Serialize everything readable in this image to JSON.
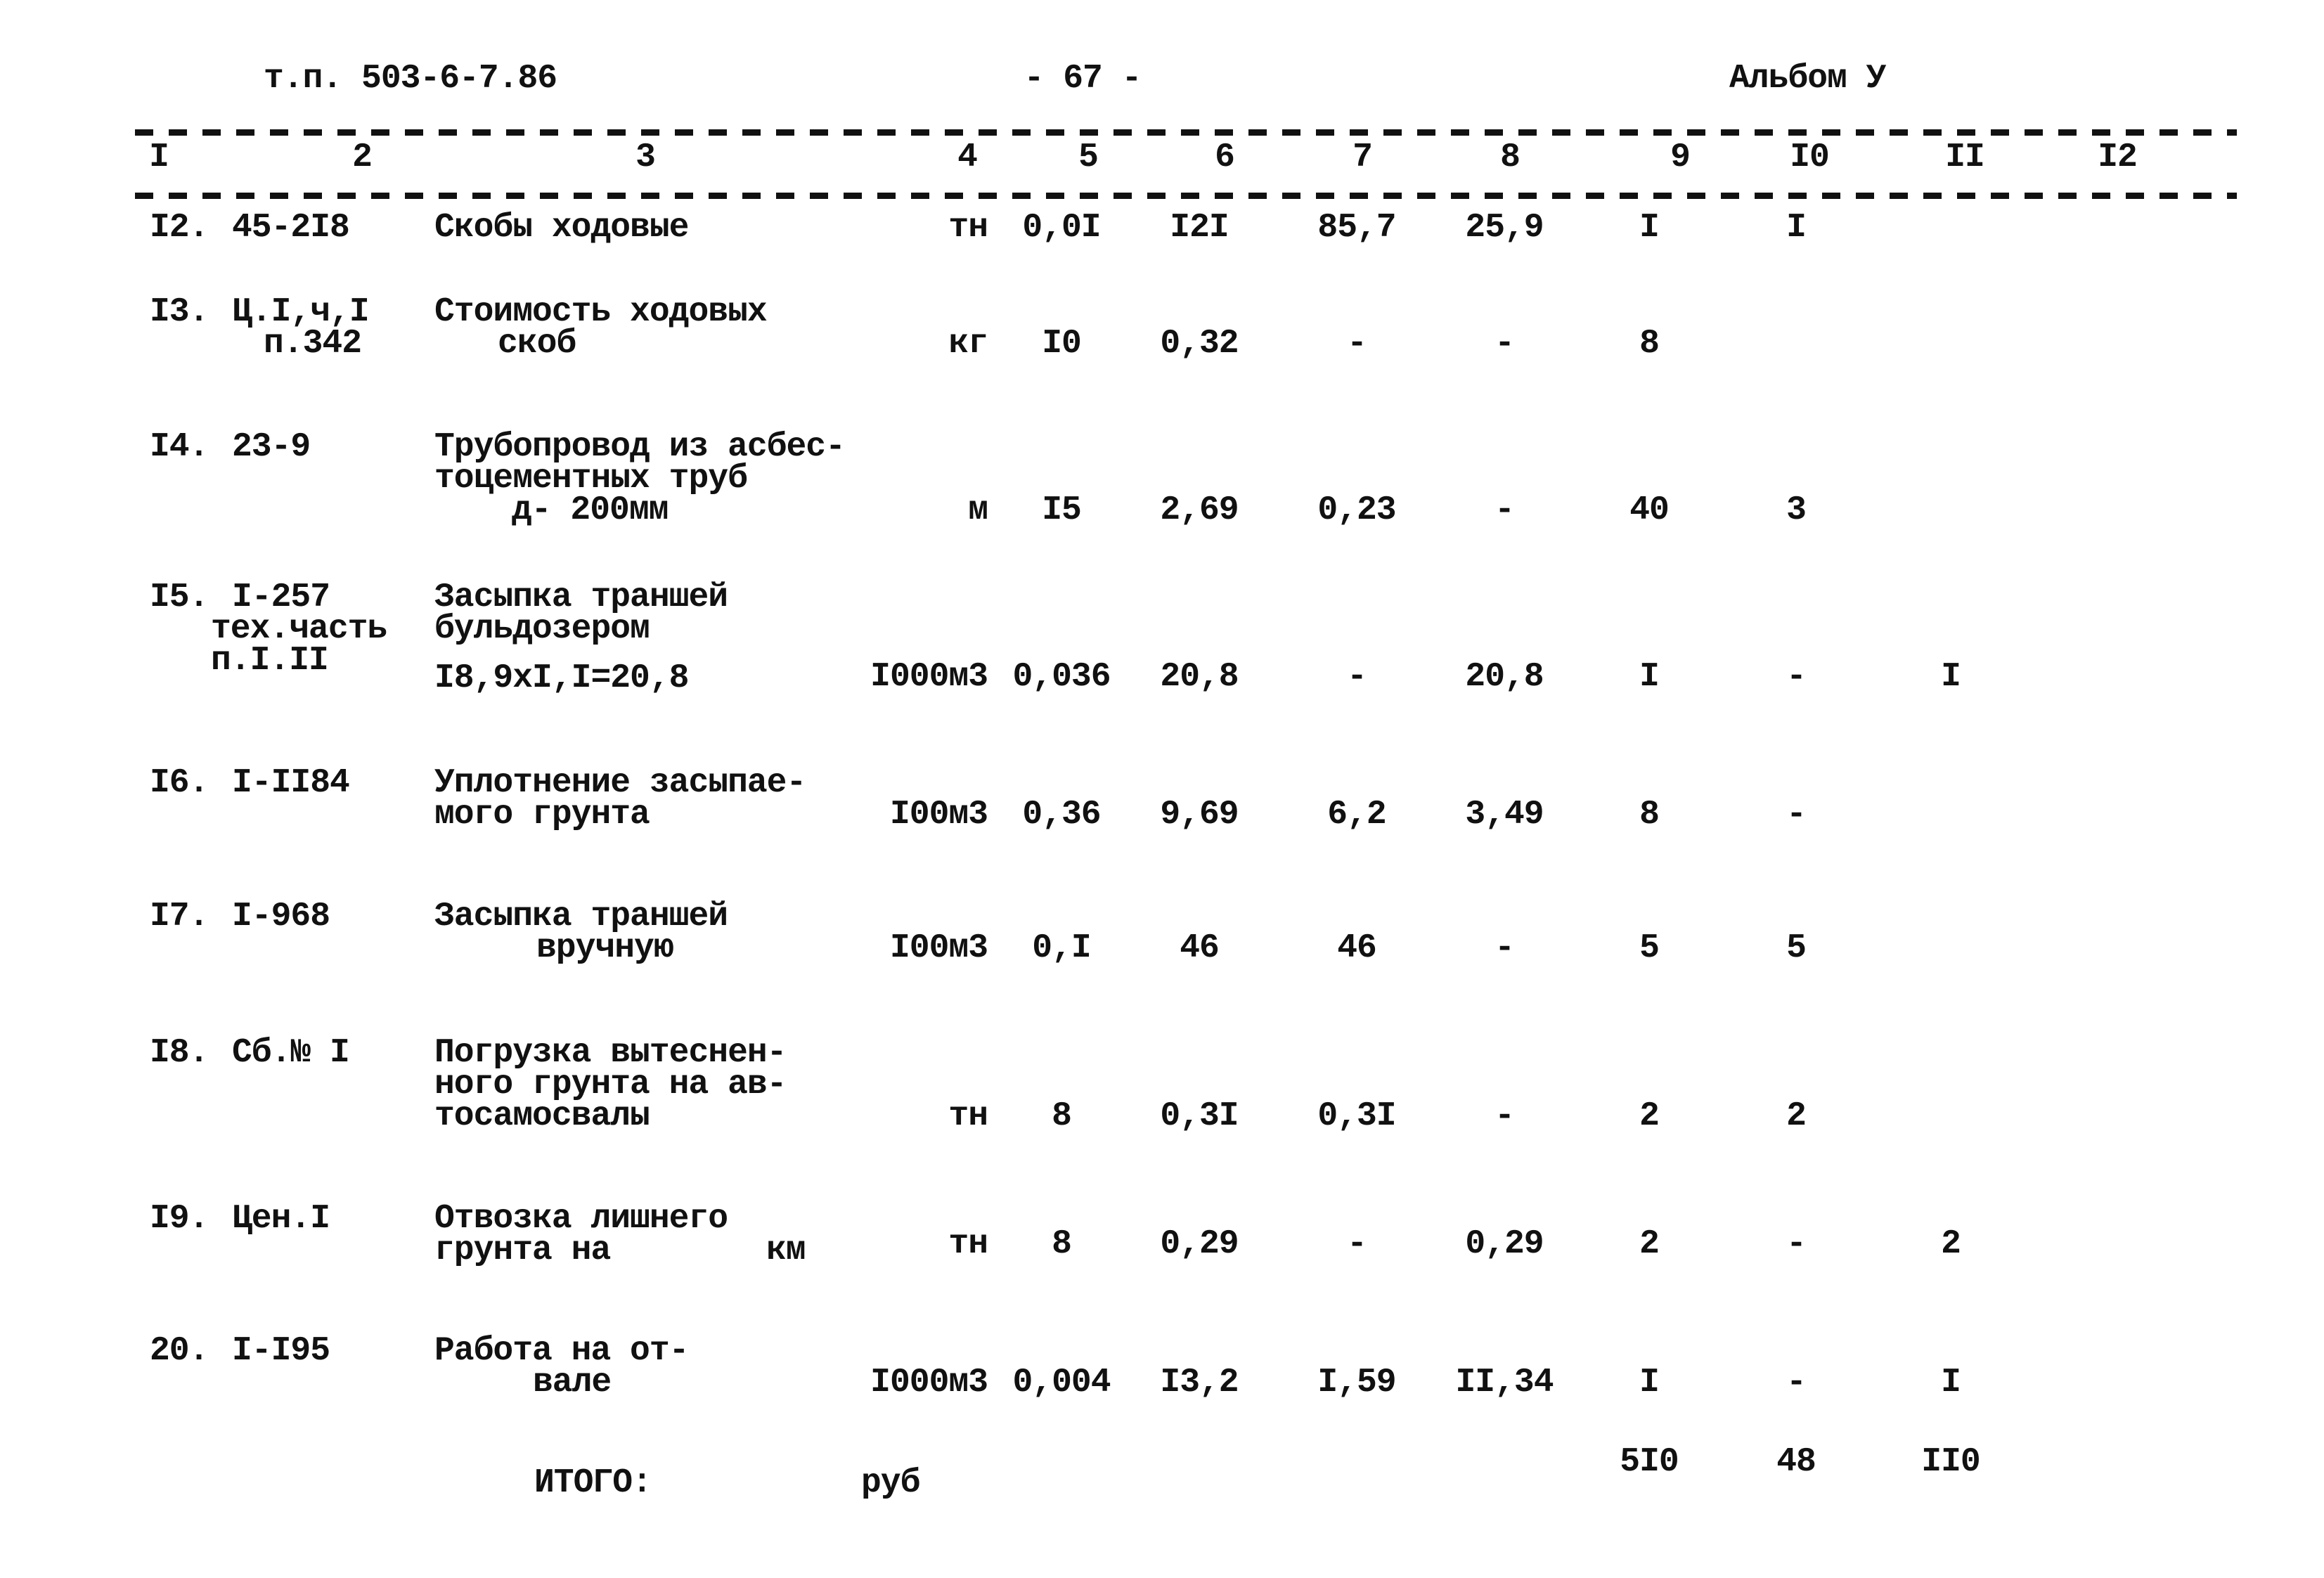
{
  "header": {
    "doc_code": "т.п. 503-6-7.86",
    "page_number": "- 67 -",
    "album": "Альбом У"
  },
  "columns": [
    "I",
    "2",
    "3",
    "4",
    "5",
    "6",
    "7",
    "8",
    "9",
    "I0",
    "II",
    "I2"
  ],
  "rows": [
    {
      "num": "I2.",
      "code": [
        "45-2I8"
      ],
      "name": [
        "Скобы ходовые"
      ],
      "unit": "тн",
      "values": [
        "0,0I",
        "I2I",
        "85,7",
        "25,9",
        "I",
        "I",
        "",
        ""
      ]
    },
    {
      "num": "I3.",
      "code": [
        "Ц.I,ч,I",
        "п.342"
      ],
      "name": [
        "Стоимость ходовых",
        "скоб"
      ],
      "unit": "кг",
      "values": [
        "I0",
        "0,32",
        "-",
        "-",
        "8",
        "",
        "",
        ""
      ]
    },
    {
      "num": "I4.",
      "code": [
        "23-9"
      ],
      "name": [
        "Трубопровод из асбес-",
        "тоцементных труб",
        "д- 200мм"
      ],
      "unit": "м",
      "values": [
        "I5",
        "2,69",
        "0,23",
        "-",
        "40",
        "3",
        "",
        ""
      ]
    },
    {
      "num": "I5.",
      "code": [
        "I-257",
        "тех.часть",
        "п.I.II"
      ],
      "name": [
        "Засыпка траншей",
        "бульдозером",
        "I8,9xI,I=20,8"
      ],
      "unit": "I000м3",
      "values": [
        "0,036",
        "20,8",
        "-",
        "20,8",
        "I",
        "-",
        "I",
        ""
      ]
    },
    {
      "num": "I6.",
      "code": [
        "I-II84"
      ],
      "name": [
        "Уплотнение засыпае-",
        "мого грунта"
      ],
      "unit": "I00м3",
      "values": [
        "0,36",
        "9,69",
        "6,2",
        "3,49",
        "8",
        "-",
        "",
        ""
      ]
    },
    {
      "num": "I7.",
      "code": [
        "I-968"
      ],
      "name": [
        "Засыпка траншей",
        "вручную"
      ],
      "unit": "I00м3",
      "values": [
        "0,I",
        "46",
        "46",
        "-",
        "5",
        "5",
        "",
        ""
      ]
    },
    {
      "num": "I8.",
      "code": [
        "Сб.№ I"
      ],
      "name": [
        "Погрузка вытеснен-",
        "ного грунта на ав-",
        "тосамосвалы"
      ],
      "unit": "тн",
      "values": [
        "8",
        "0,3I",
        "0,3I",
        "-",
        "2",
        "2",
        "",
        ""
      ]
    },
    {
      "num": "I9.",
      "code": [
        "Цен.I"
      ],
      "name": [
        "Отвозка лишнего",
        "грунта на"
      ],
      "name_suffix": "км",
      "unit": "тн",
      "values": [
        "8",
        "0,29",
        "-",
        "0,29",
        "2",
        "-",
        "2",
        ""
      ]
    },
    {
      "num": "20.",
      "code": [
        "I-I95"
      ],
      "name": [
        "Работа на от-",
        "вале"
      ],
      "unit": "I000м3",
      "values": [
        "0,004",
        "I3,2",
        "I,59",
        "II,34",
        "I",
        "-",
        "I",
        ""
      ]
    }
  ],
  "total": {
    "label": "ИТОГО:",
    "unit": "руб",
    "values": [
      "",
      "",
      "",
      "",
      "5I0",
      "48",
      "II0",
      ""
    ]
  }
}
